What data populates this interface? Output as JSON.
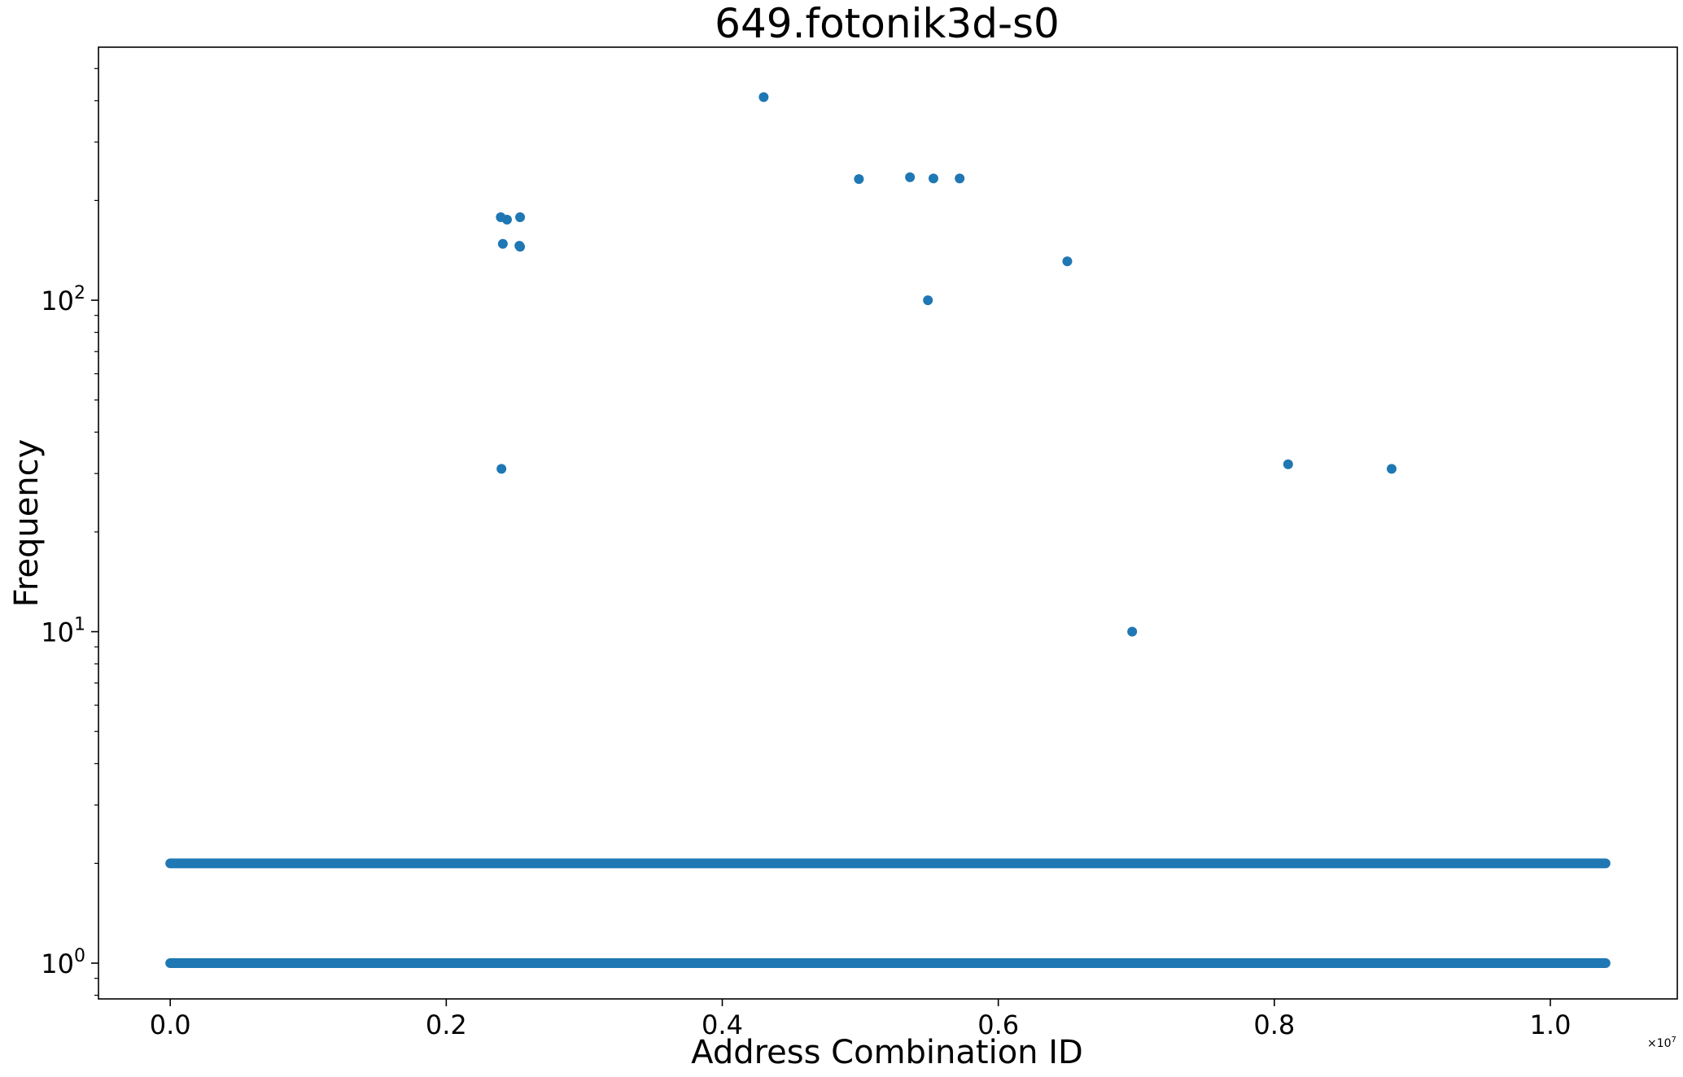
{
  "chart_data": {
    "type": "scatter",
    "title": "649.fotonik3d-s0",
    "xlabel": "Address Combination ID",
    "ylabel": "Frequency",
    "x_offset_text": "×10",
    "x_offset_exponent": "7",
    "xlim": [
      -0.052,
      1.092
    ],
    "ylim": [
      0.78,
      580
    ],
    "yscale": "log",
    "grid": false,
    "legend": "none",
    "marker_color": "#1f77b4",
    "x_ticks": [
      {
        "value": 0.0,
        "label": "0.0"
      },
      {
        "value": 0.2,
        "label": "0.2"
      },
      {
        "value": 0.4,
        "label": "0.4"
      },
      {
        "value": 0.6,
        "label": "0.6"
      },
      {
        "value": 0.8,
        "label": "0.8"
      },
      {
        "value": 1.0,
        "label": "1.0"
      }
    ],
    "y_ticks": [
      {
        "value": 1,
        "base": "10",
        "exponent": "0"
      },
      {
        "value": 10,
        "base": "10",
        "exponent": "1"
      },
      {
        "value": 100,
        "base": "10",
        "exponent": "2"
      }
    ],
    "bands": [
      {
        "x_start": 0.0,
        "x_end": 1.04,
        "y": 1
      },
      {
        "x_start": 0.0,
        "x_end": 1.04,
        "y": 2
      }
    ],
    "points": [
      {
        "x": 0.2395,
        "y": 178
      },
      {
        "x": 0.244,
        "y": 175
      },
      {
        "x": 0.2535,
        "y": 178
      },
      {
        "x": 0.241,
        "y": 148
      },
      {
        "x": 0.253,
        "y": 146
      },
      {
        "x": 0.2535,
        "y": 145
      },
      {
        "x": 0.24,
        "y": 31
      },
      {
        "x": 0.43,
        "y": 410
      },
      {
        "x": 0.499,
        "y": 232
      },
      {
        "x": 0.536,
        "y": 235
      },
      {
        "x": 0.553,
        "y": 233
      },
      {
        "x": 0.572,
        "y": 233
      },
      {
        "x": 0.549,
        "y": 100
      },
      {
        "x": 0.65,
        "y": 131
      },
      {
        "x": 0.697,
        "y": 10
      },
      {
        "x": 0.81,
        "y": 32
      },
      {
        "x": 0.885,
        "y": 31
      }
    ]
  }
}
